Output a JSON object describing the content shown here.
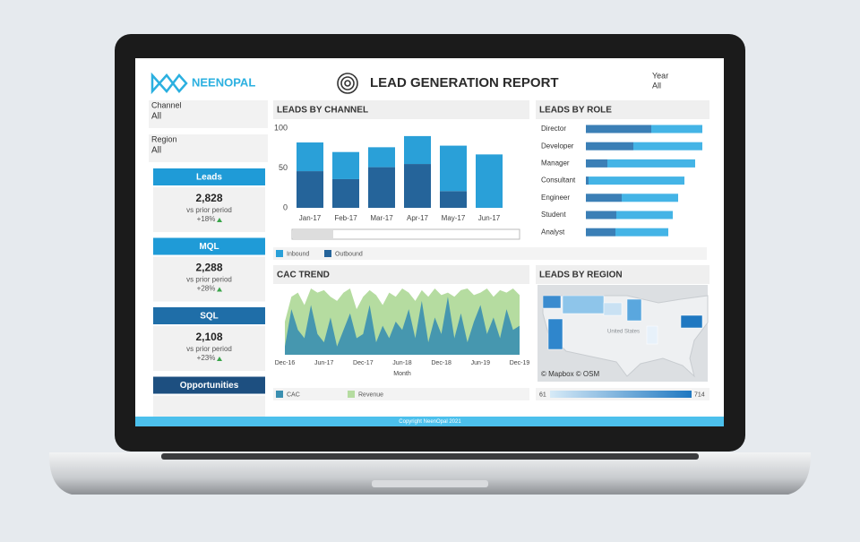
{
  "header": {
    "logo": "NEENOPAL",
    "title": "LEAD GENERATION REPORT",
    "year_label": "Year",
    "year_value": "All"
  },
  "filters": [
    {
      "label": "Channel",
      "value": "All"
    },
    {
      "label": "Region",
      "value": "All"
    }
  ],
  "kpis": [
    {
      "title": "Leads",
      "value": "2,828",
      "sub": "vs prior period",
      "change": "+18%"
    },
    {
      "title": "MQL",
      "value": "2,288",
      "sub": "vs prior period",
      "change": "+28%"
    },
    {
      "title": "SQL",
      "value": "2,108",
      "sub": "vs prior period",
      "change": "+23%"
    },
    {
      "title": "Opportunities"
    }
  ],
  "leads_by_channel": {
    "type": "bar",
    "title": "LEADS BY CHANNEL",
    "categories": [
      "Jan-17",
      "Feb-17",
      "Mar-17",
      "Apr-17",
      "May-17",
      "Jun-17"
    ],
    "series": [
      {
        "name": "Inbound",
        "color": "#2aa0d8",
        "values": [
          36,
          34,
          25,
          35,
          57,
          67
        ]
      },
      {
        "name": "Outbound",
        "color": "#25649a",
        "values": [
          46,
          36,
          51,
          55,
          21,
          0
        ]
      }
    ],
    "ylim": [
      0,
      100
    ],
    "yticks": [
      0,
      50,
      100
    ]
  },
  "leads_by_role": {
    "type": "hbar",
    "title": "LEADS BY ROLE",
    "categories": [
      "Director",
      "Developer",
      "Manager",
      "Consultant",
      "Engineer",
      "Student",
      "Analyst"
    ],
    "series": [
      {
        "color": "#3b7fb6",
        "values": [
          73,
          53,
          24,
          3,
          40,
          34,
          33
        ]
      },
      {
        "color": "#44b4e6",
        "values": [
          57,
          77,
          98,
          107,
          63,
          63,
          59
        ]
      }
    ]
  },
  "cac_trend": {
    "type": "area",
    "title": "CAC TREND",
    "xlabel": "Month",
    "categories": [
      "Dec-16",
      null,
      null,
      null,
      null,
      null,
      "Jun-17",
      null,
      null,
      null,
      null,
      null,
      "Dec-17",
      null,
      null,
      null,
      null,
      null,
      "Jun-18",
      null,
      null,
      null,
      null,
      null,
      "Dec-18",
      null,
      null,
      null,
      null,
      null,
      "Jun-19",
      null,
      null,
      null,
      null,
      null,
      "Dec-19"
    ],
    "series": [
      {
        "name": "CAC",
        "color": "#3a8fb0",
        "values": [
          10,
          55,
          30,
          20,
          60,
          25,
          15,
          45,
          10,
          30,
          50,
          20,
          25,
          60,
          15,
          35,
          20,
          40,
          30,
          55,
          20,
          65,
          15,
          45,
          25,
          70,
          20,
          50,
          15,
          40,
          60,
          25,
          45,
          20,
          55,
          30,
          35
        ]
      },
      {
        "name": "Revenue",
        "color": "#b5dca0",
        "values": [
          40,
          70,
          75,
          60,
          80,
          75,
          78,
          70,
          65,
          75,
          80,
          55,
          70,
          78,
          72,
          60,
          75,
          70,
          80,
          75,
          65,
          78,
          70,
          80,
          72,
          75,
          70,
          78,
          80,
          72,
          75,
          80,
          70,
          78,
          75,
          80,
          72
        ]
      }
    ]
  },
  "leads_by_region": {
    "title": "LEADS BY REGION",
    "map_label": "United States",
    "attribution": "© Mapbox © OSM",
    "legend_min": 61,
    "legend_max": 714
  },
  "footer": "Copyright NeenOpal 2021"
}
